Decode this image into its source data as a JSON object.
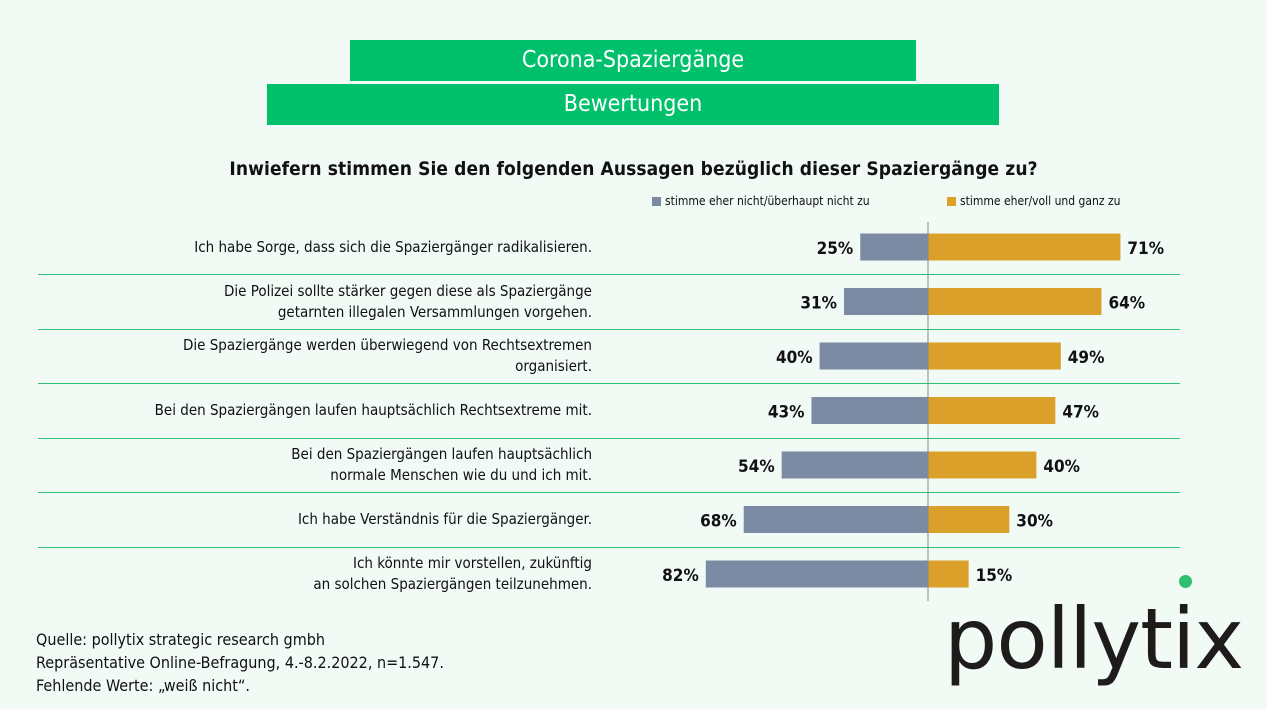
{
  "header": {
    "title": "Corona-Spaziergänge",
    "subtitle": "Bewertungen"
  },
  "chart_data": {
    "type": "bar",
    "orientation": "horizontal-diverging",
    "title": "Inwiefern stimmen Sie den folgenden Aussagen bezüglich dieser Spaziergänge zu?",
    "legend_position": "top-right",
    "categories": [
      "Ich habe Sorge, dass sich die Spaziergänger radikalisieren.",
      "Die Polizei sollte stärker gegen diese als Spaziergänge\ngetarnten illegalen Versammlungen vorgehen.",
      "Die Spaziergänge werden überwiegend von Rechtsextremen\norganisiert.",
      "Bei den Spaziergängen laufen hauptsächlich Rechtsextreme mit.",
      "Bei den Spaziergängen laufen hauptsächlich\nnormale Menschen wie du und ich mit.",
      "Ich habe Verständnis für die Spaziergänger.",
      "Ich könnte mir vorstellen, zukünftig\nan solchen Spaziergängen teilzunehmen."
    ],
    "series": [
      {
        "name": "stimme eher nicht/überhaupt nicht zu",
        "color": "#7b8ba3",
        "values": [
          25,
          31,
          40,
          43,
          54,
          68,
          82
        ]
      },
      {
        "name": "stimme eher/voll und ganz zu",
        "color": "#dba02a",
        "values": [
          71,
          64,
          49,
          47,
          40,
          30,
          15
        ]
      }
    ],
    "unit": "%",
    "grid": false
  },
  "source": {
    "line1": "Quelle: pollytix strategic research gmbh",
    "line2": "Repräsentative Online-Befragung, 4.-8.2.2022, n=1.547.",
    "line3": "Fehlende Werte: „weiß nicht“."
  },
  "logo": {
    "text": "pollytix",
    "dot_color": "#2fbf6f"
  }
}
